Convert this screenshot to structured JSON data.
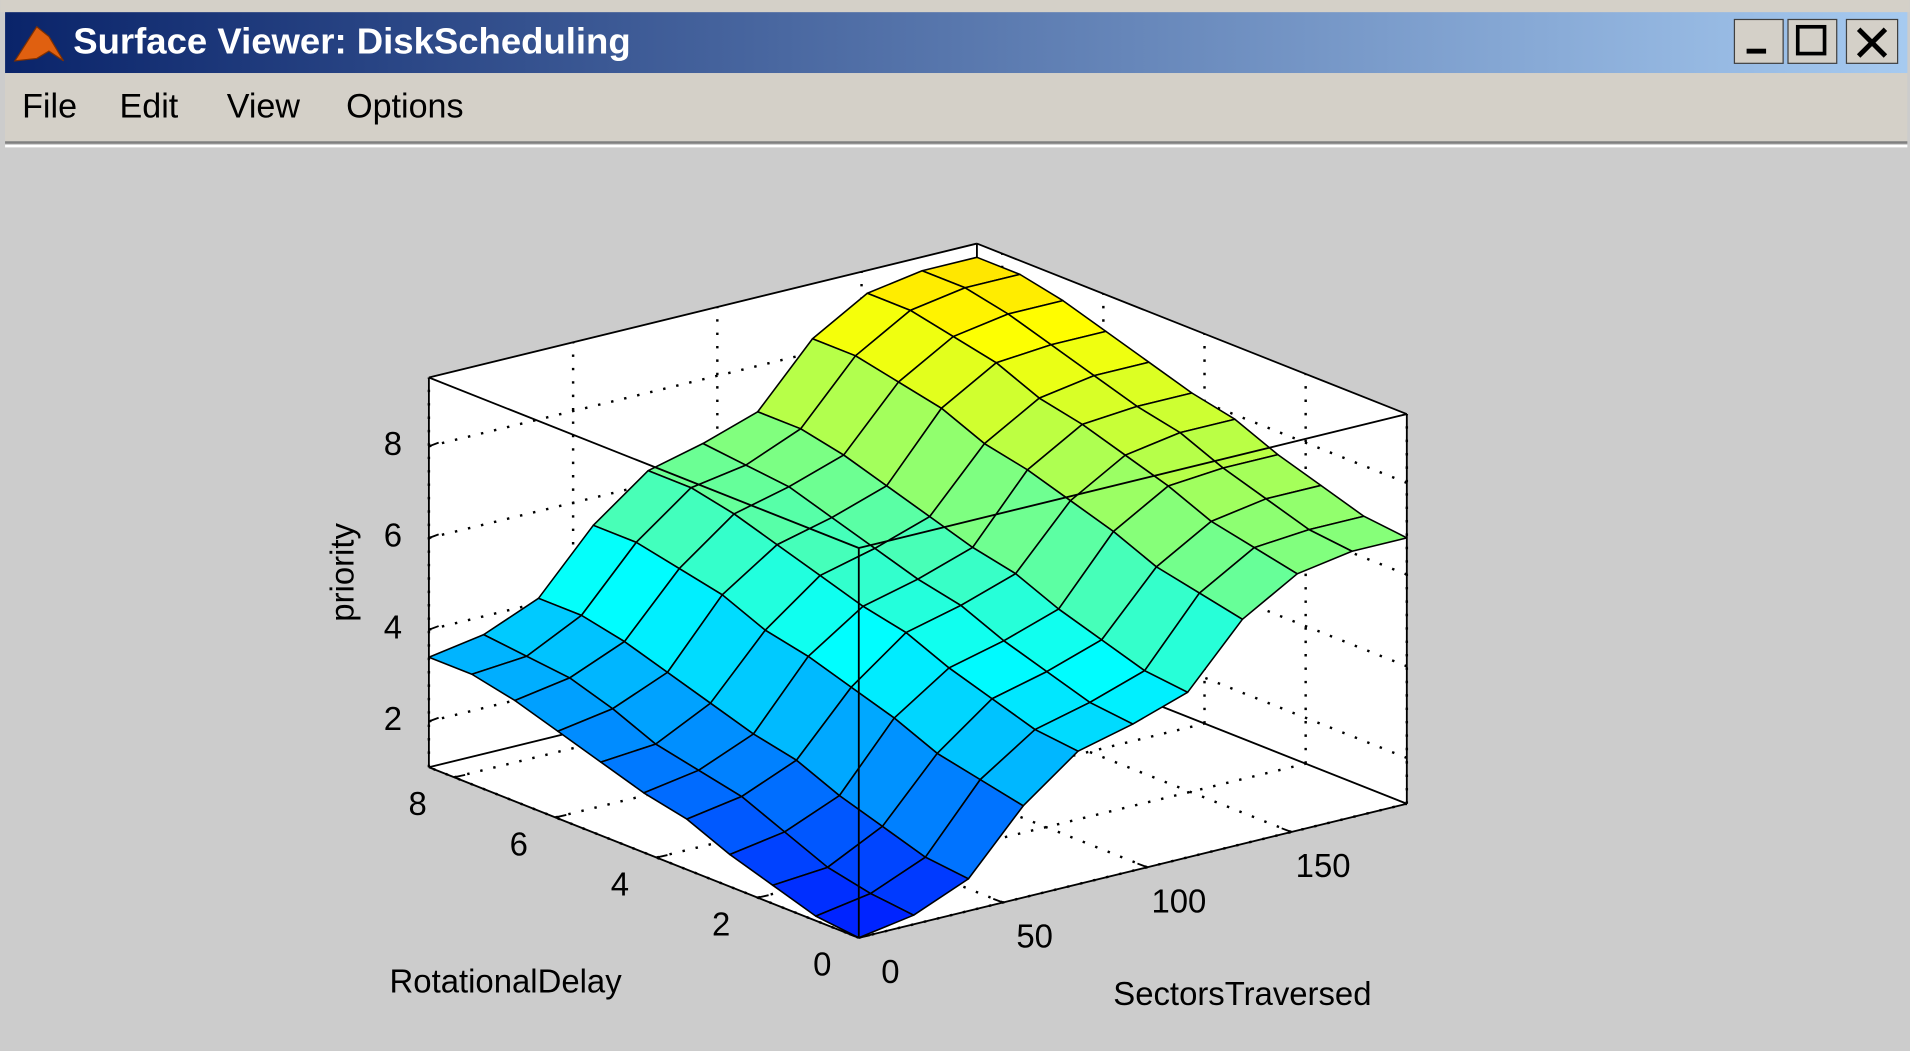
{
  "window": {
    "title": "Surface Viewer: DiskScheduling",
    "menu": [
      "File",
      "Edit",
      "View",
      "Options"
    ]
  },
  "chart_data": {
    "type": "surface",
    "xlabel": "SectorsTraversed",
    "ylabel": "RotationalDelay",
    "zlabel": "priority",
    "x": [
      0,
      19,
      38,
      57,
      76,
      95,
      114,
      133,
      152,
      171,
      190
    ],
    "y": [
      0,
      0.85,
      1.7,
      2.55,
      3.4,
      4.25,
      5.1,
      5.95,
      6.8,
      7.65,
      8.5
    ],
    "z": [
      [
        1.0,
        1.2,
        1.7,
        3.0,
        3.9,
        4.2,
        4.6,
        5.9,
        6.6,
        6.8,
        6.8
      ],
      [
        1.1,
        1.3,
        1.8,
        3.2,
        4.0,
        4.3,
        4.7,
        6.1,
        6.8,
        6.9,
        6.9
      ],
      [
        1.4,
        1.5,
        2.1,
        3.4,
        4.3,
        4.6,
        5.0,
        6.3,
        7.0,
        7.2,
        7.2
      ],
      [
        1.7,
        1.9,
        2.4,
        3.8,
        4.6,
        4.9,
        5.3,
        6.7,
        7.4,
        7.5,
        7.5
      ],
      [
        2.1,
        2.3,
        2.8,
        4.1,
        5.0,
        5.3,
        5.7,
        7.0,
        7.7,
        7.9,
        7.9
      ],
      [
        2.3,
        2.5,
        3.0,
        4.4,
        5.2,
        5.5,
        5.9,
        7.3,
        8.0,
        8.1,
        8.1
      ],
      [
        2.6,
        2.7,
        3.3,
        4.6,
        5.5,
        5.8,
        6.2,
        7.5,
        8.2,
        8.4,
        8.4
      ],
      [
        2.9,
        3.1,
        3.6,
        5.0,
        5.8,
        6.1,
        6.5,
        7.9,
        8.6,
        8.7,
        8.7
      ],
      [
        3.2,
        3.4,
        3.9,
        5.2,
        6.1,
        6.4,
        6.8,
        8.1,
        8.8,
        9.0,
        9.0
      ],
      [
        3.4,
        3.5,
        4.1,
        5.4,
        6.3,
        6.5,
        7.0,
        8.3,
        9.0,
        9.2,
        9.2
      ],
      [
        3.4,
        3.6,
        4.1,
        5.4,
        6.3,
        6.6,
        7.0,
        8.3,
        9.0,
        9.2,
        9.2
      ]
    ],
    "xlim": [
      0,
      190
    ],
    "ylim": [
      0,
      8.5
    ],
    "zlim": [
      1,
      9.5
    ],
    "xticks": [
      0,
      50,
      100,
      150
    ],
    "yticks": [
      0,
      2,
      4,
      6,
      8
    ],
    "zticks": [
      2,
      4,
      6,
      8
    ],
    "grid": true,
    "colormap": "jet",
    "clim": [
      -1.5,
      15
    ]
  }
}
